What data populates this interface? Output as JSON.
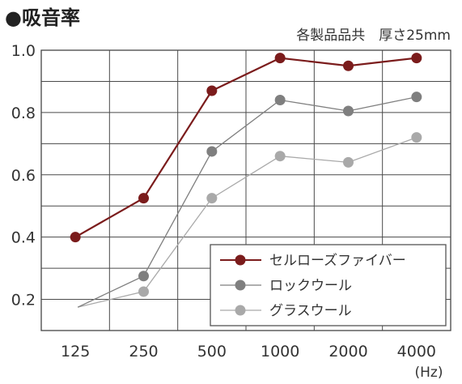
{
  "header": {
    "title": "●吸音率",
    "subtitle": "各製品品共　厚さ25mm"
  },
  "chart_data": {
    "type": "line",
    "title": "●吸音率",
    "subtitle": "各製品品共　厚さ25mm",
    "xlabel": "",
    "x_unit": "(Hz)",
    "ylabel": "",
    "categories": [
      "125",
      "250",
      "500",
      "1000",
      "2000",
      "4000"
    ],
    "ylim": [
      0.1,
      1.0
    ],
    "y_ticks": [
      "0.2",
      "0.4",
      "0.6",
      "0.8",
      "1.0"
    ],
    "grid": true,
    "legend_position": "bottom-right",
    "series": [
      {
        "name": "セルローズファイバー",
        "color": "#7b1c1c",
        "values": [
          0.4,
          0.525,
          0.87,
          0.975,
          0.95,
          0.975
        ]
      },
      {
        "name": "ロックウール",
        "color": "#7f7f7f",
        "values": [
          0.175,
          0.275,
          0.675,
          0.84,
          0.805,
          0.85
        ]
      },
      {
        "name": "グラスウール",
        "color": "#a9a9a9",
        "values": [
          0.175,
          0.225,
          0.525,
          0.66,
          0.64,
          0.72
        ]
      }
    ]
  }
}
